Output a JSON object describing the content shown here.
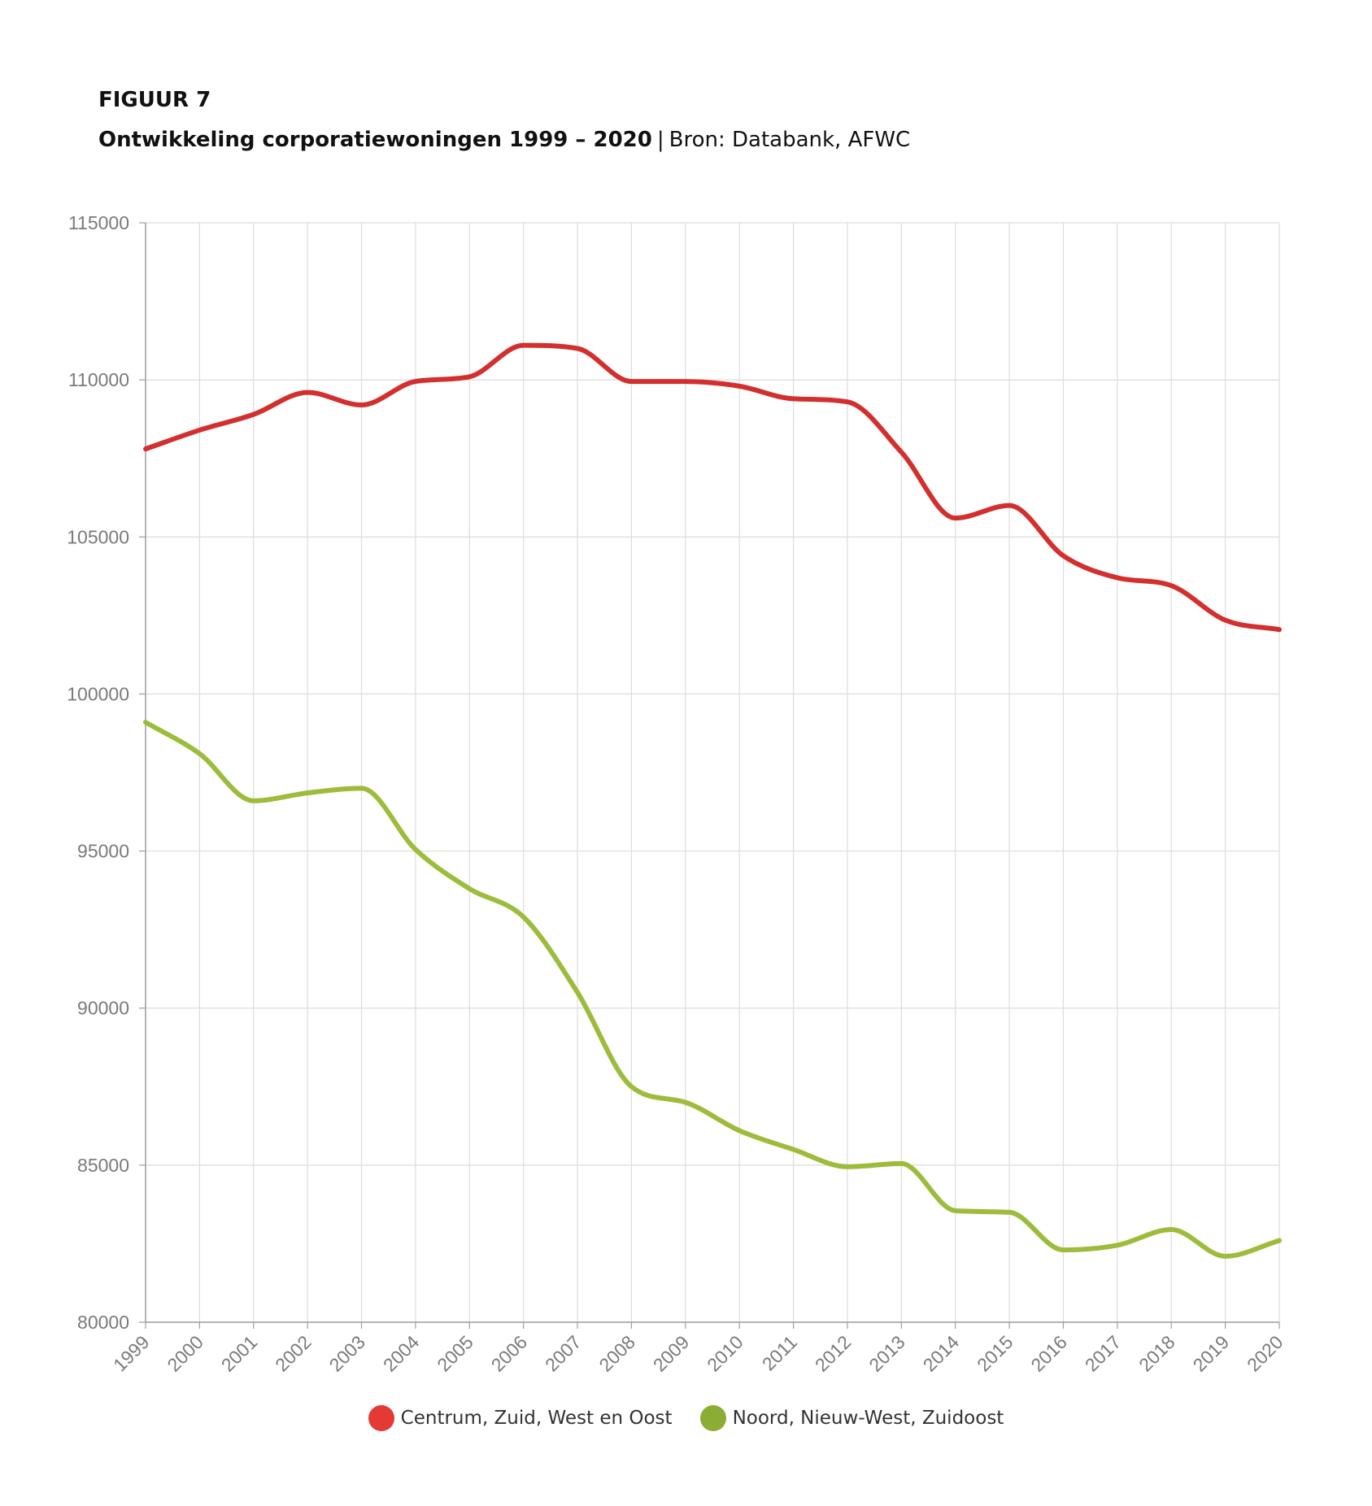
{
  "figure": {
    "label": "FIGUUR 7",
    "title_bold": "Ontwikkeling corporatiewoningen 1999 – 2020",
    "separator": "|",
    "source": "Bron: Databank, AFWC"
  },
  "chart_data": {
    "type": "line",
    "title": "Ontwikkeling corporatiewoningen 1999 – 2020",
    "xlabel": "",
    "ylabel": "",
    "x": [
      "1999",
      "2000",
      "2001",
      "2002",
      "2003",
      "2004",
      "2005",
      "2006",
      "2007",
      "2008",
      "2009",
      "2010",
      "2011",
      "2012",
      "2013",
      "2014",
      "2015",
      "2016",
      "2017",
      "2018",
      "2019",
      "2020"
    ],
    "ylim": [
      80000,
      115000
    ],
    "yticks": [
      80000,
      85000,
      90000,
      95000,
      100000,
      105000,
      110000,
      115000
    ],
    "grid": true,
    "legend_position": "bottom-center",
    "series": [
      {
        "name": "Centrum, Zuid, West en Oost",
        "color": "#d32f2f",
        "legend_color": "#e53935",
        "values": [
          107800,
          108400,
          108900,
          109600,
          109200,
          109950,
          110100,
          111100,
          111000,
          109950,
          109950,
          109800,
          109400,
          109300,
          107700,
          105600,
          106000,
          104400,
          103700,
          103450,
          102350,
          102050
        ]
      },
      {
        "name": "Noord, Nieuw-West, Zuidoost",
        "color": "#9dbc3c",
        "legend_color": "#8bac35",
        "values": [
          99100,
          98100,
          96600,
          96850,
          97000,
          95050,
          93800,
          92900,
          90500,
          87500,
          87000,
          86100,
          85500,
          84950,
          85050,
          83550,
          83500,
          82300,
          82450,
          82950,
          82100,
          82600
        ]
      }
    ]
  }
}
